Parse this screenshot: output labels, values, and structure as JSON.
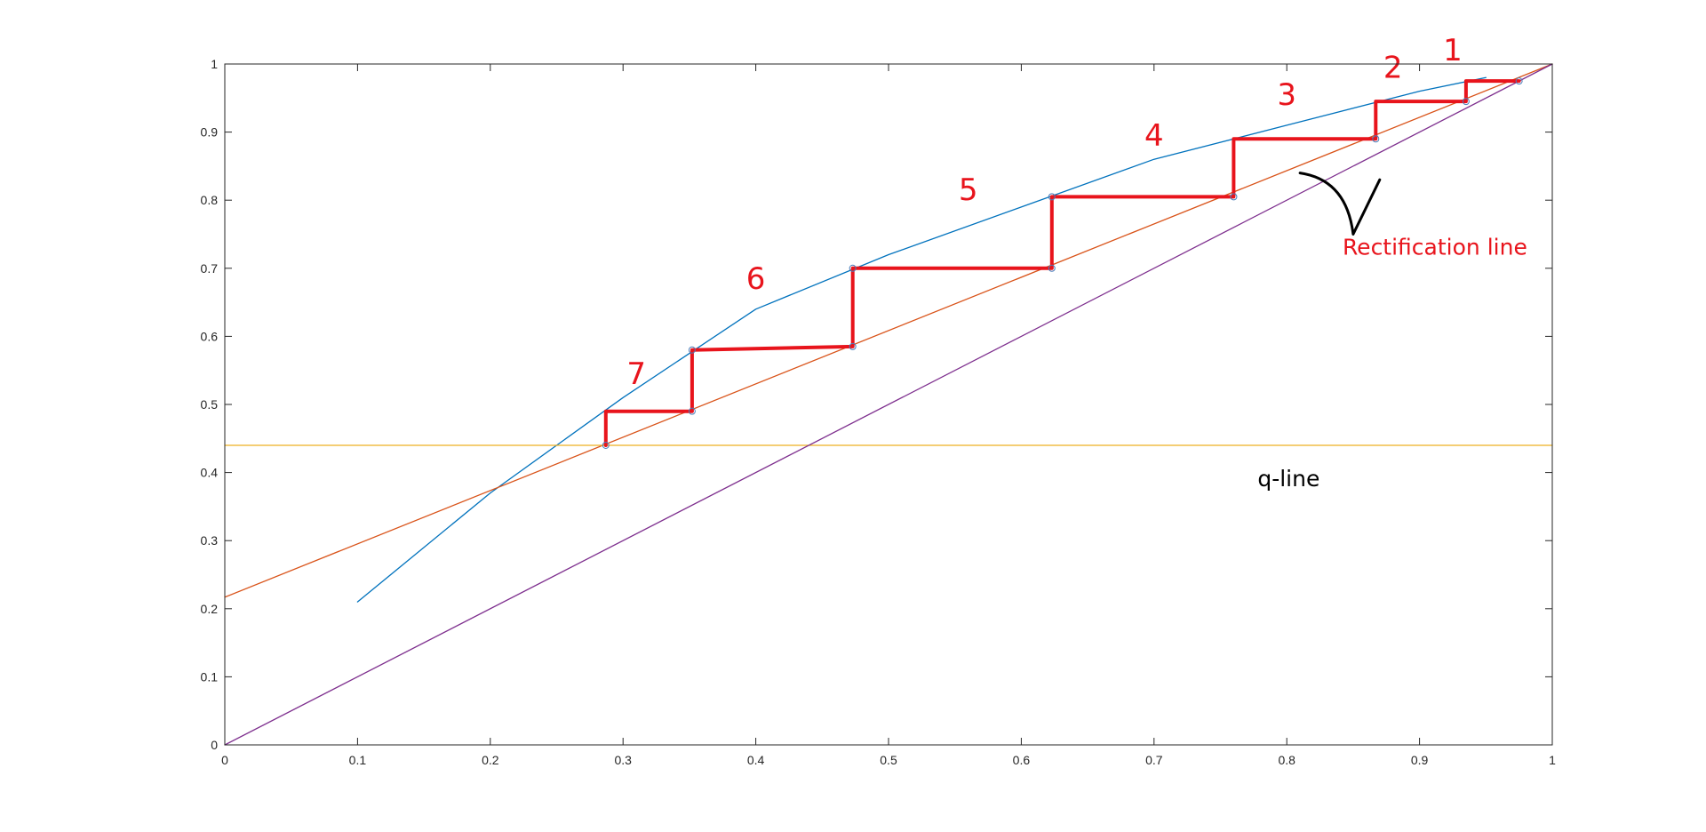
{
  "chart_data": {
    "type": "line",
    "title": "",
    "xlabel": "",
    "ylabel": "",
    "xlim": [
      0,
      1
    ],
    "ylim": [
      0,
      1
    ],
    "grid": false,
    "x_ticks": [
      0,
      0.1,
      0.2,
      0.3,
      0.4,
      0.5,
      0.6,
      0.7,
      0.8,
      0.9,
      1
    ],
    "y_ticks": [
      0,
      0.1,
      0.2,
      0.3,
      0.4,
      0.5,
      0.6,
      0.7,
      0.8,
      0.9,
      1
    ],
    "x_tick_labels": [
      "0",
      "0.1",
      "0.2",
      "0.3",
      "0.4",
      "0.5",
      "0.6",
      "0.7",
      "0.8",
      "0.9",
      "1"
    ],
    "y_tick_labels": [
      "0",
      "0.1",
      "0.2",
      "0.3",
      "0.4",
      "0.5",
      "0.6",
      "0.7",
      "0.8",
      "0.9",
      "1"
    ],
    "series": [
      {
        "color": "#0072BD",
        "x": [
          0.1,
          0.2,
          0.3,
          0.4,
          0.5,
          0.6,
          0.7,
          0.8,
          0.9,
          0.95
        ],
        "y": [
          0.21,
          0.37,
          0.51,
          0.64,
          0.72,
          0.79,
          0.86,
          0.91,
          0.96,
          0.98
        ]
      },
      {
        "color": "#D95319",
        "x": [
          0,
          1
        ],
        "y": [
          0.217,
          1
        ]
      },
      {
        "color": "#EDB120",
        "x": [
          0,
          1
        ],
        "y": [
          0.44,
          0.44
        ]
      },
      {
        "color": "#7E2F8E",
        "x": [
          0,
          1
        ],
        "y": [
          0,
          1
        ]
      },
      {
        "color": "#E8141C",
        "x": [
          0.287,
          0.287,
          0.352,
          0.352,
          0.473,
          0.473,
          0.623,
          0.623,
          0.76,
          0.76,
          0.867,
          0.867,
          0.935,
          0.935,
          0.975
        ],
        "y": [
          0.44,
          0.49,
          0.49,
          0.58,
          0.585,
          0.7,
          0.7,
          0.805,
          0.805,
          0.89,
          0.89,
          0.945,
          0.945,
          0.975,
          0.975
        ]
      }
    ],
    "markers": {
      "color": "#4A7EBB",
      "points": [
        [
          0.287,
          0.44
        ],
        [
          0.352,
          0.49
        ],
        [
          0.473,
          0.585
        ],
        [
          0.623,
          0.7
        ],
        [
          0.76,
          0.805
        ],
        [
          0.867,
          0.89
        ],
        [
          0.935,
          0.945
        ],
        [
          0.975,
          0.975
        ],
        [
          0.352,
          0.58
        ],
        [
          0.473,
          0.7
        ],
        [
          0.623,
          0.805
        ]
      ]
    },
    "annotations": [
      {
        "text": "Rectification line",
        "x": 0.842,
        "y": 0.72,
        "color": "#E8141C"
      },
      {
        "text": "q-line",
        "x": 0.778,
        "y": 0.38,
        "color": "#000000"
      }
    ],
    "hand_labels": {
      "color": "#E8141C",
      "items": [
        {
          "text": "7",
          "x": 0.31,
          "y": 0.53
        },
        {
          "text": "6",
          "x": 0.4,
          "y": 0.67
        },
        {
          "text": "5",
          "x": 0.56,
          "y": 0.8
        },
        {
          "text": "4",
          "x": 0.7,
          "y": 0.88
        },
        {
          "text": "3",
          "x": 0.8,
          "y": 0.94
        },
        {
          "text": "2",
          "x": 0.88,
          "y": 0.98
        },
        {
          "text": "1",
          "x": 0.925,
          "y": 1.005
        }
      ]
    },
    "arrow": {
      "color": "#000000",
      "points": [
        [
          0.81,
          0.84
        ],
        [
          0.85,
          0.75
        ],
        [
          0.87,
          0.83
        ]
      ]
    }
  }
}
